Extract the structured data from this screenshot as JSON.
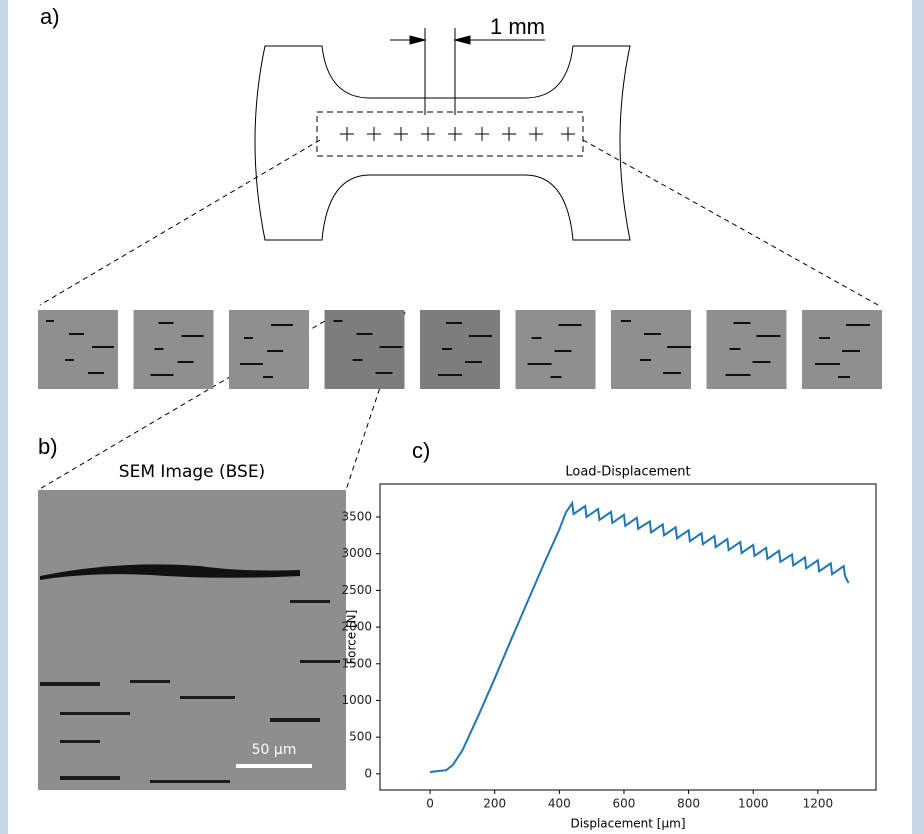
{
  "panel_a": {
    "label": "a)",
    "scale_label": "1 mm"
  },
  "panel_b": {
    "label": "b)",
    "title": "SEM Image (BSE)",
    "scale_label": "50 µm"
  },
  "panel_c": {
    "label": "c)"
  },
  "chart_data": {
    "type": "line",
    "title": "Load-Displacement",
    "x_label": "Displacement [µm]",
    "y_label": "Force [N]",
    "x": [
      0,
      20,
      50,
      70,
      100,
      150,
      200,
      250,
      300,
      350,
      400,
      420,
      440,
      444,
      480,
      484,
      520,
      524,
      560,
      564,
      600,
      604,
      640,
      644,
      680,
      684,
      720,
      724,
      760,
      764,
      800,
      804,
      840,
      844,
      880,
      884,
      920,
      924,
      960,
      964,
      1000,
      1004,
      1040,
      1044,
      1080,
      1084,
      1120,
      1124,
      1160,
      1164,
      1200,
      1204,
      1240,
      1244,
      1280,
      1284,
      1295
    ],
    "series": [
      {
        "color": "#1f77b4",
        "values": [
          25,
          35,
          50,
          120,
          320,
          800,
          1300,
          1820,
          2330,
          2840,
          3330,
          3560,
          3690,
          3540,
          3650,
          3500,
          3610,
          3460,
          3570,
          3420,
          3530,
          3380,
          3490,
          3340,
          3440,
          3290,
          3400,
          3250,
          3360,
          3210,
          3320,
          3170,
          3280,
          3130,
          3240,
          3090,
          3200,
          3050,
          3160,
          3010,
          3120,
          2970,
          3080,
          2930,
          3040,
          2890,
          2990,
          2840,
          2950,
          2800,
          2910,
          2760,
          2870,
          2720,
          2830,
          2700,
          2600
        ]
      }
    ],
    "xlim": [
      -155,
      1380
    ],
    "ylim": [
      -220,
      3950
    ],
    "xticks": [
      0,
      200,
      400,
      600,
      800,
      1000,
      1200
    ],
    "yticks": [
      0,
      500,
      1000,
      1500,
      2000,
      2500,
      3000,
      3500
    ]
  }
}
